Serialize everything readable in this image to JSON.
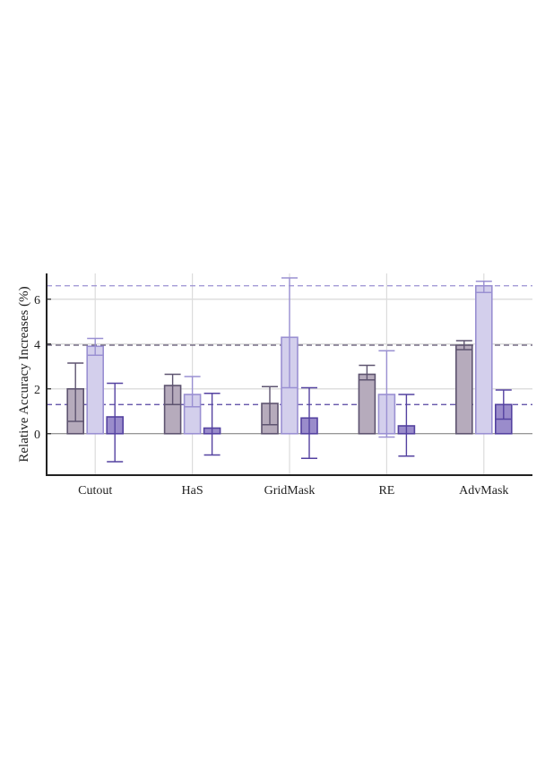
{
  "chart_data": {
    "type": "bar",
    "title": "",
    "xlabel": "",
    "ylabel": "Relative Accuracy Increases (%)",
    "ylim": [
      -1.85,
      7.15
    ],
    "yticks": [
      0,
      2,
      4,
      6
    ],
    "grid": true,
    "categories": [
      "Cutout",
      "HaS",
      "GridMask",
      "RE",
      "AdvMask"
    ],
    "series": [
      {
        "color": "#b6abbc",
        "edge": "#5e5470",
        "values": [
          2.0,
          2.15,
          1.35,
          2.65,
          3.95
        ],
        "err_low": [
          1.45,
          0.85,
          0.95,
          0.25,
          0.2
        ],
        "err_high": [
          1.15,
          0.5,
          0.75,
          0.4,
          0.2
        ],
        "ref_line": 3.95
      },
      {
        "color": "#d3cfec",
        "edge": "#9a90d2",
        "values": [
          3.9,
          1.75,
          4.3,
          1.75,
          6.6
        ],
        "err_low": [
          0.4,
          0.55,
          2.25,
          1.9,
          0.3
        ],
        "err_high": [
          0.35,
          0.8,
          2.65,
          1.95,
          0.2
        ],
        "ref_line": 6.6
      },
      {
        "color": "#9a8ccb",
        "edge": "#5442a0",
        "values": [
          0.75,
          0.25,
          0.7,
          0.35,
          1.3
        ],
        "err_low": [
          2.0,
          1.2,
          1.8,
          1.35,
          0.65
        ],
        "err_high": [
          1.5,
          1.55,
          1.35,
          1.4,
          0.65
        ],
        "ref_line": 1.3
      }
    ]
  }
}
